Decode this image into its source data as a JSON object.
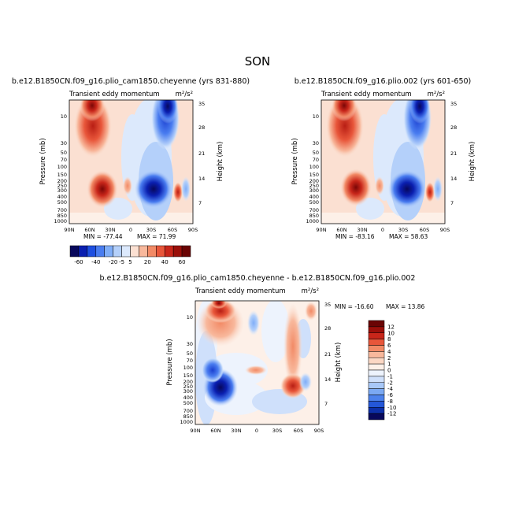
{
  "figure_title": "SON",
  "chart_data": [
    {
      "type": "heatmap",
      "title": "b.e12.B1850CN.f09_g16.plio_cam1850.cheyenne (yrs 831-880)",
      "subtitle_left": "Transient eddy momentum",
      "units": "m²/s²",
      "ylabel": "Pressure (mb)",
      "ylabel_right": "Height (km)",
      "xticks": [
        "90N",
        "60N",
        "30N",
        "0",
        "30S",
        "60S",
        "90S"
      ],
      "yticks": [
        "10",
        "30",
        "50",
        "70",
        "100",
        "150",
        "200",
        "250",
        "300",
        "400",
        "500",
        "700",
        "850",
        "1000"
      ],
      "yticks_right": [
        "35",
        "28",
        "21",
        "14",
        "7"
      ],
      "min_label": "MIN = -77.44",
      "max_label": "MAX = 71.99",
      "min": -77.44,
      "max": 71.99
    },
    {
      "type": "heatmap",
      "title": "b.e12.B1850CN.f09_g16.plio.002 (yrs 601-650)",
      "subtitle_left": "Transient eddy momentum",
      "units": "m²/s²",
      "ylabel": "Pressure (mb)",
      "ylabel_right": "Height (km)",
      "xticks": [
        "90N",
        "60N",
        "30N",
        "0",
        "30S",
        "60S",
        "90S"
      ],
      "yticks": [
        "10",
        "30",
        "50",
        "70",
        "100",
        "150",
        "200",
        "250",
        "300",
        "400",
        "500",
        "700",
        "850",
        "1000"
      ],
      "yticks_right": [
        "35",
        "28",
        "21",
        "14",
        "7"
      ],
      "min_label": "MIN = -83.16",
      "max_label": "MAX = 58.63",
      "min": -83.16,
      "max": 58.63
    },
    {
      "type": "heatmap",
      "title": "b.e12.B1850CN.f09_g16.plio_cam1850.cheyenne - b.e12.B1850CN.f09_g16.plio.002",
      "subtitle_left": "Transient eddy momentum",
      "units": "m²/s²",
      "ylabel": "Pressure (mb)",
      "ylabel_right": "Height (km)",
      "xticks": [
        "90N",
        "60N",
        "30N",
        "0",
        "30S",
        "60S",
        "90S"
      ],
      "yticks": [
        "10",
        "30",
        "50",
        "70",
        "100",
        "150",
        "200",
        "250",
        "300",
        "400",
        "500",
        "700",
        "850",
        "1000"
      ],
      "yticks_right": [
        "35",
        "28",
        "21",
        "14",
        "7"
      ],
      "min_label": "MIN = -16.60",
      "max_label": "MAX = 13.86",
      "min": -16.6,
      "max": 13.86
    }
  ],
  "colorbar_top": {
    "labels": [
      "-60",
      "-40",
      "-20",
      "-5",
      "5",
      "20",
      "40",
      "60"
    ],
    "colors": [
      "#08085c",
      "#0a1fb0",
      "#1e4fe0",
      "#4a7df0",
      "#80aef8",
      "#b4d0fa",
      "#dce9fc",
      "#fbe0d2",
      "#f8b89c",
      "#f28a66",
      "#e8563a",
      "#c8261a",
      "#9a0f0a",
      "#6a0404"
    ]
  },
  "colorbar_diff": {
    "labels": [
      "12",
      "10",
      "8",
      "6",
      "4",
      "2",
      "1",
      "0",
      "-1",
      "-2",
      "-4",
      "-6",
      "-8",
      "-10",
      "-12"
    ],
    "colors": [
      "#6a0404",
      "#9a0f0a",
      "#c8261a",
      "#e8563a",
      "#f28a66",
      "#f8b89c",
      "#fbd7c4",
      "#fdf0e8",
      "#edf3fd",
      "#cfe0fb",
      "#a8c8f8",
      "#7ba9f3",
      "#4d82ec",
      "#2457d8",
      "#0d2fa8",
      "#08085c"
    ]
  }
}
